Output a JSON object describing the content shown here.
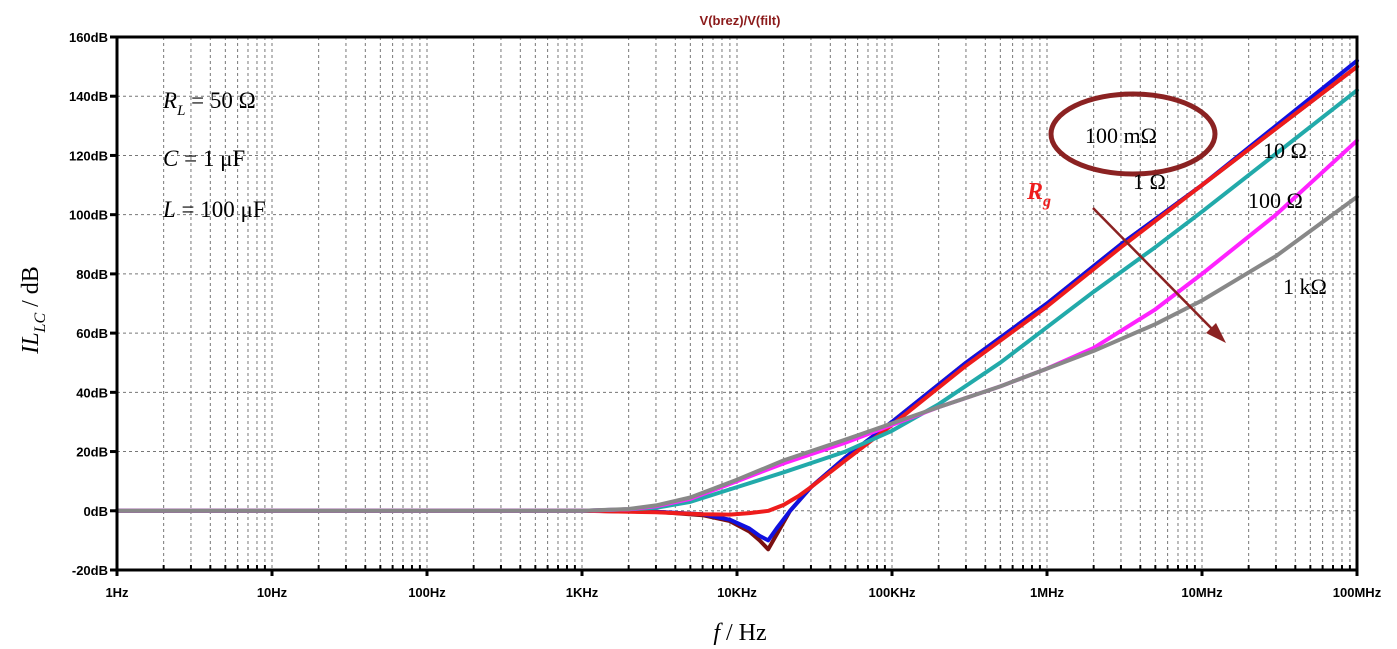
{
  "chart_data": {
    "type": "line",
    "title": "V(brez)/V(filt)",
    "xlabel": {
      "var": "f",
      "unit": " / Hz"
    },
    "ylabel": {
      "main": "IL",
      "sub": "LC",
      "unit": " / dB"
    },
    "x_scale": "log",
    "xlim": [
      1,
      100000000
    ],
    "ylim": [
      -20,
      160
    ],
    "grid": true,
    "x_ticks": [
      {
        "value": 1,
        "label": "1Hz"
      },
      {
        "value": 10,
        "label": "10Hz"
      },
      {
        "value": 100,
        "label": "100Hz"
      },
      {
        "value": 1000,
        "label": "1KHz"
      },
      {
        "value": 10000,
        "label": "10KHz"
      },
      {
        "value": 100000,
        "label": "100KHz"
      },
      {
        "value": 1000000,
        "label": "1MHz"
      },
      {
        "value": 10000000,
        "label": "10MHz"
      },
      {
        "value": 100000000,
        "label": "100MHz"
      }
    ],
    "y_ticks": [
      {
        "value": 160,
        "label": "160dB"
      },
      {
        "value": 140,
        "label": "140dB"
      },
      {
        "value": 120,
        "label": "120dB"
      },
      {
        "value": 100,
        "label": "100dB"
      },
      {
        "value": 80,
        "label": "80dB"
      },
      {
        "value": 60,
        "label": "60dB"
      },
      {
        "value": 40,
        "label": "40dB"
      },
      {
        "value": 20,
        "label": "20dB"
      },
      {
        "value": 0,
        "label": "0dB"
      },
      {
        "value": -20,
        "label": "-20dB"
      }
    ],
    "params": [
      {
        "sym": "R",
        "sub": "L",
        "val": " = 50 Ω"
      },
      {
        "sym": "C",
        "sub": "",
        "val": " = 1 μF"
      },
      {
        "sym": "L",
        "sub": "",
        "val": " = 100 μF"
      }
    ],
    "series": [
      {
        "name": "100 mΩ",
        "color": "#7a1010",
        "x": [
          1,
          1000,
          3000,
          6000,
          9000,
          12000,
          14000,
          15900,
          18000,
          22000,
          30000,
          50000,
          100000,
          300000,
          1000000,
          3000000,
          10000000,
          100000000
        ],
        "y": [
          0,
          0,
          -0.3,
          -1.5,
          -3.5,
          -7,
          -10,
          -13,
          -8,
          0,
          8,
          18,
          30,
          50,
          70,
          90,
          110,
          150
        ]
      },
      {
        "name": "1 Ω",
        "color": "#1010e0",
        "x": [
          1,
          1000,
          3000,
          6000,
          9000,
          12000,
          14000,
          15900,
          18000,
          22000,
          30000,
          50000,
          100000,
          300000,
          1000000,
          3000000,
          10000000,
          100000000
        ],
        "y": [
          0,
          0,
          -0.3,
          -1.2,
          -3,
          -6,
          -8.5,
          -10,
          -6,
          0,
          8,
          18,
          30,
          50,
          70,
          90,
          110,
          152
        ]
      },
      {
        "name": "10 Ω",
        "color": "#ee1c1c",
        "x": [
          1,
          1000,
          3000,
          6000,
          9000,
          12000,
          16000,
          20000,
          25000,
          30000,
          50000,
          100000,
          300000,
          1000000,
          3000000,
          10000000,
          100000000
        ],
        "y": [
          0,
          0,
          -0.5,
          -1.2,
          -1.3,
          -0.8,
          0,
          2,
          5,
          8,
          17,
          29,
          49,
          69,
          89,
          110,
          150
        ]
      },
      {
        "name": "100 Ω",
        "color": "#22aaaa",
        "x": [
          1,
          1000,
          2000,
          3000,
          5000,
          10000,
          20000,
          50000,
          100000,
          200000,
          500000,
          1000000,
          2000000,
          5000000,
          10000000,
          100000000
        ],
        "y": [
          0,
          0,
          0.5,
          1,
          3,
          8,
          13,
          20,
          27,
          36,
          50,
          62,
          74,
          89,
          101,
          142
        ]
      },
      {
        "name": "1 kΩ",
        "color": "#ff22ff",
        "x": [
          1,
          1000,
          2000,
          3000,
          5000,
          10000,
          20000,
          50000,
          100000,
          200000,
          500000,
          1000000,
          2000000,
          5000000,
          10000000,
          30000000,
          100000000
        ],
        "y": [
          0,
          0,
          0.5,
          1.5,
          4,
          10,
          16,
          23,
          29,
          35,
          42,
          48,
          55,
          68,
          80,
          100,
          125
        ]
      },
      {
        "name": "",
        "color": "#888888",
        "x": [
          1,
          1000,
          2000,
          3000,
          5000,
          10000,
          20000,
          50000,
          100000,
          200000,
          500000,
          1000000,
          2000000,
          5000000,
          10000000,
          30000000,
          100000000
        ],
        "y": [
          0,
          0,
          0.6,
          1.8,
          4.5,
          10.5,
          17,
          24,
          29.5,
          35,
          42,
          48,
          54,
          63,
          71,
          86,
          106
        ]
      }
    ],
    "annotations": {
      "curve_labels": [
        {
          "text": "100 mΩ",
          "circled": true
        },
        {
          "text": "10 Ω"
        },
        {
          "text": "1 Ω"
        },
        {
          "text": "100 Ω"
        },
        {
          "text": "1 kΩ"
        }
      ],
      "rg_label": {
        "sym": "R",
        "sub": "g",
        "color": "#ee1c1c"
      },
      "arrow_color": "#8b2222"
    }
  }
}
